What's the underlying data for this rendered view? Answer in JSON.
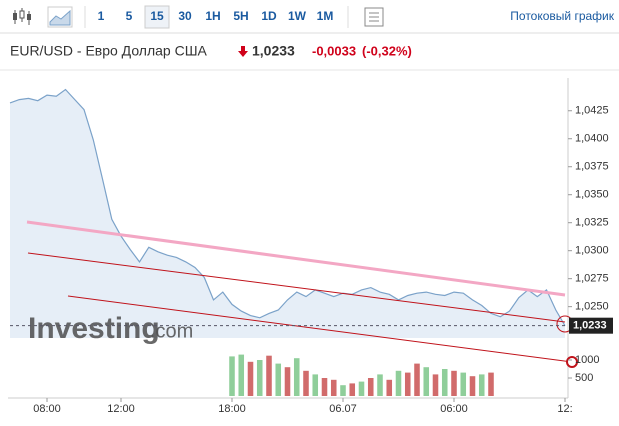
{
  "toolbar": {
    "intervals": [
      "1",
      "5",
      "15",
      "30",
      "1H",
      "5H",
      "1D",
      "1W",
      "1M"
    ],
    "active": "15",
    "stream_link": "Потоковый график"
  },
  "header": {
    "name": "EUR/USD - Евро Доллар США",
    "price": "1,0233",
    "change": "-0,0033",
    "change_pct": "(-0,32%)"
  },
  "watermark": {
    "brand": "Investing",
    "suffix": ".com"
  },
  "chart_data": {
    "type": "line",
    "categories": [
      null,
      null,
      null,
      null,
      "08:00",
      null,
      null,
      null,
      null,
      null,
      null,
      null,
      "12:00",
      null,
      null,
      null,
      null,
      null,
      null,
      null,
      null,
      null,
      null,
      null,
      "18:00",
      null,
      null,
      null,
      null,
      null,
      null,
      null,
      null,
      null,
      null,
      null,
      "06.07",
      null,
      null,
      null,
      null,
      null,
      null,
      null,
      null,
      null,
      null,
      null,
      "06:00",
      null,
      null,
      null,
      null,
      null,
      null,
      null,
      null,
      null,
      null,
      null,
      "12:"
    ],
    "series": [
      {
        "name": "EUR/USD",
        "color": "#7ba2c9",
        "fill": "#e6eef7",
        "values": [
          1.0432,
          1.0435,
          1.0436,
          1.0434,
          1.0439,
          1.0438,
          1.0444,
          1.0435,
          1.0426,
          1.0399,
          1.0364,
          1.0328,
          1.0313,
          1.0301,
          1.029,
          1.0303,
          1.0299,
          1.0296,
          1.0294,
          1.029,
          1.0285,
          1.0276,
          1.0256,
          1.0263,
          1.0252,
          1.0246,
          1.0242,
          1.024,
          1.0244,
          1.0247,
          1.0256,
          1.0263,
          1.0259,
          1.0265,
          1.0262,
          1.0259,
          1.0262,
          1.0261,
          1.0265,
          1.0267,
          1.0263,
          1.0261,
          1.0256,
          1.026,
          1.0262,
          1.0263,
          1.0261,
          1.026,
          1.0263,
          1.0262,
          1.0256,
          1.0251,
          1.0244,
          1.0241,
          1.0246,
          1.0258,
          1.0265,
          1.0259,
          1.0265,
          1.0247,
          1.0233
        ]
      },
      {
        "name": "Volume",
        "axis": "y2",
        "up_color": "#8fce9a",
        "down_color": "#d16b6b",
        "values": [
          null,
          null,
          null,
          null,
          null,
          null,
          null,
          null,
          null,
          null,
          null,
          null,
          null,
          null,
          null,
          null,
          null,
          null,
          null,
          null,
          null,
          null,
          null,
          null,
          1100,
          1150,
          950,
          1000,
          1120,
          900,
          800,
          1050,
          700,
          600,
          500,
          450,
          300,
          350,
          400,
          500,
          600,
          450,
          700,
          650,
          900,
          800,
          600,
          750,
          700,
          650,
          550,
          600,
          650,
          null,
          null,
          null,
          null,
          null,
          null,
          null,
          null
        ],
        "up": [
          null,
          null,
          null,
          null,
          null,
          null,
          null,
          null,
          null,
          null,
          null,
          null,
          null,
          null,
          null,
          null,
          null,
          null,
          null,
          null,
          null,
          null,
          null,
          null,
          true,
          true,
          false,
          true,
          false,
          true,
          false,
          true,
          false,
          true,
          false,
          false,
          true,
          false,
          true,
          false,
          true,
          false,
          true,
          false,
          false,
          true,
          false,
          true,
          false,
          true,
          false,
          true,
          false,
          null,
          null,
          null,
          null,
          null,
          null,
          null,
          null
        ]
      }
    ],
    "ylim": [
      1.0222,
      1.0448
    ],
    "yticks": [
      {
        "value": 1.025,
        "label": "1,0250"
      },
      {
        "value": 1.0275,
        "label": "1,0275"
      },
      {
        "value": 1.03,
        "label": "1,0300"
      },
      {
        "value": 1.0325,
        "label": "1,0325"
      },
      {
        "value": 1.035,
        "label": "1,0350"
      },
      {
        "value": 1.0375,
        "label": "1,0375"
      },
      {
        "value": 1.04,
        "label": "1,0400"
      },
      {
        "value": 1.0425,
        "label": "1,0425"
      }
    ],
    "y2lim": [
      0,
      1250
    ],
    "y2ticks": [
      500,
      1000
    ],
    "last_price": {
      "value": 1.0233,
      "label": "1,0233"
    }
  }
}
